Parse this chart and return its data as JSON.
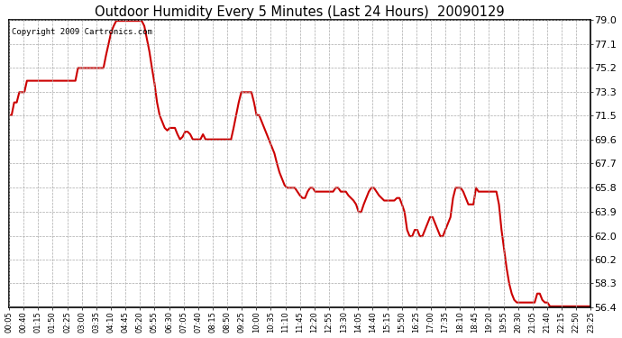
{
  "title": "Outdoor Humidity Every 5 Minutes (Last 24 Hours)  20090129",
  "copyright": "Copyright 2009 Cartronics.com",
  "line_color": "#cc0000",
  "bg_color": "#ffffff",
  "grid_color": "#aaaaaa",
  "ylim": [
    56.4,
    79.0
  ],
  "yticks": [
    56.4,
    58.3,
    60.2,
    62.0,
    63.9,
    65.8,
    67.7,
    69.6,
    71.5,
    73.3,
    75.2,
    77.1,
    79.0
  ],
  "x_labels": [
    "00:05",
    "00:40",
    "01:15",
    "01:50",
    "02:25",
    "03:00",
    "03:35",
    "04:10",
    "04:45",
    "05:20",
    "05:55",
    "06:30",
    "07:05",
    "07:40",
    "08:15",
    "08:50",
    "09:25",
    "10:00",
    "10:35",
    "11:10",
    "11:45",
    "12:20",
    "12:55",
    "13:30",
    "14:05",
    "14:40",
    "15:15",
    "15:50",
    "16:25",
    "17:00",
    "17:35",
    "18:10",
    "18:45",
    "19:20",
    "19:55",
    "20:30",
    "21:05",
    "21:40",
    "22:15",
    "22:50",
    "23:25"
  ],
  "key_points": [
    [
      0,
      71.5
    ],
    [
      1,
      71.5
    ],
    [
      2,
      72.5
    ],
    [
      3,
      72.5
    ],
    [
      4,
      73.3
    ],
    [
      5,
      73.3
    ],
    [
      6,
      73.3
    ],
    [
      7,
      74.2
    ],
    [
      8,
      74.2
    ],
    [
      9,
      74.2
    ],
    [
      10,
      74.2
    ],
    [
      11,
      74.2
    ],
    [
      12,
      74.2
    ],
    [
      13,
      74.2
    ],
    [
      14,
      74.2
    ],
    [
      15,
      74.2
    ],
    [
      16,
      74.2
    ],
    [
      17,
      74.2
    ],
    [
      18,
      74.2
    ],
    [
      19,
      74.2
    ],
    [
      20,
      74.2
    ],
    [
      21,
      74.2
    ],
    [
      22,
      74.2
    ],
    [
      23,
      74.2
    ],
    [
      24,
      74.2
    ],
    [
      25,
      74.2
    ],
    [
      26,
      74.2
    ],
    [
      27,
      75.2
    ],
    [
      28,
      75.2
    ],
    [
      29,
      75.2
    ],
    [
      30,
      75.2
    ],
    [
      31,
      75.2
    ],
    [
      32,
      75.2
    ],
    [
      33,
      75.2
    ],
    [
      34,
      75.2
    ],
    [
      35,
      75.2
    ],
    [
      36,
      75.2
    ],
    [
      37,
      75.2
    ],
    [
      38,
      76.2
    ],
    [
      39,
      77.1
    ],
    [
      40,
      78.0
    ],
    [
      41,
      78.5
    ],
    [
      42,
      78.9
    ],
    [
      43,
      78.9
    ],
    [
      44,
      78.9
    ],
    [
      45,
      78.9
    ],
    [
      46,
      78.9
    ],
    [
      47,
      78.9
    ],
    [
      48,
      78.9
    ],
    [
      49,
      78.9
    ],
    [
      50,
      78.9
    ],
    [
      51,
      78.9
    ],
    [
      52,
      78.9
    ],
    [
      53,
      78.5
    ],
    [
      54,
      77.5
    ],
    [
      55,
      76.5
    ],
    [
      56,
      75.2
    ],
    [
      57,
      74.0
    ],
    [
      58,
      72.5
    ],
    [
      59,
      71.5
    ],
    [
      60,
      71.0
    ],
    [
      61,
      70.5
    ],
    [
      62,
      70.3
    ],
    [
      63,
      70.5
    ],
    [
      64,
      70.5
    ],
    [
      65,
      70.5
    ],
    [
      66,
      70.0
    ],
    [
      67,
      69.6
    ],
    [
      68,
      69.8
    ],
    [
      69,
      70.2
    ],
    [
      70,
      70.2
    ],
    [
      71,
      70.0
    ],
    [
      72,
      69.6
    ],
    [
      73,
      69.6
    ],
    [
      74,
      69.6
    ],
    [
      75,
      69.6
    ],
    [
      76,
      70.0
    ],
    [
      77,
      69.6
    ],
    [
      78,
      69.6
    ],
    [
      79,
      69.6
    ],
    [
      80,
      69.6
    ],
    [
      81,
      69.6
    ],
    [
      82,
      69.6
    ],
    [
      83,
      69.6
    ],
    [
      84,
      69.6
    ],
    [
      85,
      69.6
    ],
    [
      86,
      69.6
    ],
    [
      87,
      69.6
    ],
    [
      88,
      70.5
    ],
    [
      89,
      71.5
    ],
    [
      90,
      72.5
    ],
    [
      91,
      73.3
    ],
    [
      92,
      73.3
    ],
    [
      93,
      73.3
    ],
    [
      94,
      73.3
    ],
    [
      95,
      73.3
    ],
    [
      96,
      72.5
    ],
    [
      97,
      71.5
    ],
    [
      98,
      71.5
    ],
    [
      99,
      71.0
    ],
    [
      100,
      70.5
    ],
    [
      101,
      70.0
    ],
    [
      102,
      69.5
    ],
    [
      103,
      69.0
    ],
    [
      104,
      68.5
    ],
    [
      105,
      67.7
    ],
    [
      106,
      67.0
    ],
    [
      107,
      66.5
    ],
    [
      108,
      66.0
    ],
    [
      109,
      65.8
    ],
    [
      110,
      65.8
    ],
    [
      111,
      65.8
    ],
    [
      112,
      65.8
    ],
    [
      113,
      65.5
    ],
    [
      114,
      65.2
    ],
    [
      115,
      65.0
    ],
    [
      116,
      65.0
    ],
    [
      117,
      65.5
    ],
    [
      118,
      65.8
    ],
    [
      119,
      65.8
    ],
    [
      120,
      65.5
    ],
    [
      121,
      65.5
    ],
    [
      122,
      65.5
    ],
    [
      123,
      65.5
    ],
    [
      124,
      65.5
    ],
    [
      125,
      65.5
    ],
    [
      126,
      65.5
    ],
    [
      127,
      65.5
    ],
    [
      128,
      65.8
    ],
    [
      129,
      65.8
    ],
    [
      130,
      65.5
    ],
    [
      131,
      65.5
    ],
    [
      132,
      65.5
    ],
    [
      133,
      65.2
    ],
    [
      134,
      65.0
    ],
    [
      135,
      64.8
    ],
    [
      136,
      64.5
    ],
    [
      137,
      63.9
    ],
    [
      138,
      63.9
    ],
    [
      139,
      64.5
    ],
    [
      140,
      65.0
    ],
    [
      141,
      65.5
    ],
    [
      142,
      65.8
    ],
    [
      143,
      65.8
    ],
    [
      144,
      65.5
    ],
    [
      145,
      65.2
    ],
    [
      146,
      65.0
    ],
    [
      147,
      64.8
    ],
    [
      148,
      64.8
    ],
    [
      149,
      64.8
    ],
    [
      150,
      64.8
    ],
    [
      151,
      64.8
    ],
    [
      152,
      65.0
    ],
    [
      153,
      65.0
    ],
    [
      154,
      64.5
    ],
    [
      155,
      63.9
    ],
    [
      156,
      62.5
    ],
    [
      157,
      62.0
    ],
    [
      158,
      62.0
    ],
    [
      159,
      62.5
    ],
    [
      160,
      62.5
    ],
    [
      161,
      62.0
    ],
    [
      162,
      62.0
    ],
    [
      163,
      62.5
    ],
    [
      164,
      63.0
    ],
    [
      165,
      63.5
    ],
    [
      166,
      63.5
    ],
    [
      167,
      63.0
    ],
    [
      168,
      62.5
    ],
    [
      169,
      62.0
    ],
    [
      170,
      62.0
    ],
    [
      171,
      62.5
    ],
    [
      172,
      63.0
    ],
    [
      173,
      63.5
    ],
    [
      174,
      65.0
    ],
    [
      175,
      65.8
    ],
    [
      176,
      65.8
    ],
    [
      177,
      65.8
    ],
    [
      178,
      65.5
    ],
    [
      179,
      65.0
    ],
    [
      180,
      64.5
    ],
    [
      181,
      64.5
    ],
    [
      182,
      64.5
    ],
    [
      183,
      65.8
    ],
    [
      184,
      65.5
    ],
    [
      185,
      65.5
    ],
    [
      186,
      65.5
    ],
    [
      187,
      65.5
    ],
    [
      188,
      65.5
    ],
    [
      189,
      65.5
    ],
    [
      190,
      65.5
    ],
    [
      191,
      65.5
    ],
    [
      192,
      64.5
    ],
    [
      193,
      62.5
    ],
    [
      194,
      61.0
    ],
    [
      195,
      59.5
    ],
    [
      196,
      58.3
    ],
    [
      197,
      57.5
    ],
    [
      198,
      57.0
    ],
    [
      199,
      56.8
    ],
    [
      200,
      56.8
    ],
    [
      201,
      56.8
    ],
    [
      202,
      56.8
    ],
    [
      203,
      56.8
    ],
    [
      204,
      56.8
    ],
    [
      205,
      56.8
    ],
    [
      206,
      56.8
    ],
    [
      207,
      57.5
    ],
    [
      208,
      57.5
    ],
    [
      209,
      57.0
    ],
    [
      210,
      56.8
    ],
    [
      211,
      56.8
    ],
    [
      212,
      56.5
    ],
    [
      213,
      56.5
    ],
    [
      214,
      56.5
    ],
    [
      215,
      56.5
    ],
    [
      216,
      56.5
    ],
    [
      217,
      56.5
    ],
    [
      218,
      56.5
    ],
    [
      219,
      56.5
    ],
    [
      220,
      56.5
    ],
    [
      221,
      56.5
    ],
    [
      222,
      56.5
    ],
    [
      223,
      56.5
    ],
    [
      224,
      56.5
    ],
    [
      225,
      56.5
    ],
    [
      226,
      56.5
    ],
    [
      227,
      56.5
    ],
    [
      228,
      56.5
    ]
  ]
}
